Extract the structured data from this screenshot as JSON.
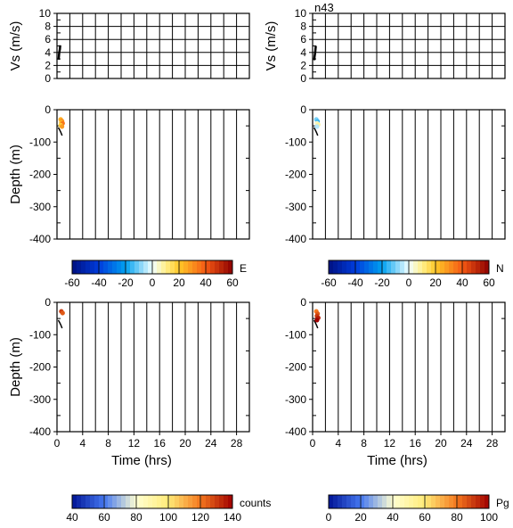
{
  "figure": {
    "station": "n43",
    "colors": {
      "frame": "#000000",
      "trace": "#000000",
      "background": "#ffffff"
    }
  },
  "chart_data": [
    {
      "type": "line",
      "panel": "vs-left",
      "ylabel": "Vs (m/s)",
      "ylim": [
        0,
        10
      ],
      "yticks": [
        0,
        2,
        4,
        6,
        8,
        10
      ],
      "xlim": [
        0,
        30
      ],
      "grid": true,
      "series": [
        {
          "x": [
            0.25,
            0.3,
            0.35,
            0.45,
            0.5
          ],
          "y": [
            2.9,
            3.4,
            4.0,
            4.5,
            5.1
          ]
        }
      ]
    },
    {
      "type": "line",
      "panel": "vs-right",
      "title": "n43",
      "ylabel": "Vs (m/s)",
      "ylim": [
        0,
        10
      ],
      "yticks": [
        0,
        2,
        4,
        6,
        8,
        10
      ],
      "xlim": [
        0,
        30
      ],
      "grid": true,
      "series": [
        {
          "x": [
            0.25,
            0.3,
            0.4,
            0.45,
            0.5
          ],
          "y": [
            2.8,
            3.3,
            4.0,
            4.5,
            5.0
          ]
        }
      ]
    },
    {
      "type": "scatter",
      "panel": "depth-E",
      "ylabel": "Depth (m)",
      "ylim": [
        -400,
        0
      ],
      "yticks": [
        0,
        -100,
        -200,
        -300,
        -400
      ],
      "xlim": [
        0,
        30
      ],
      "grid": true,
      "colorbar": {
        "label": "E",
        "min": -60,
        "max": 60,
        "ticks": [
          -60,
          -40,
          -20,
          0,
          20,
          40,
          60
        ]
      },
      "points": [
        {
          "x": 0.3,
          "y": -30,
          "v": 25
        },
        {
          "x": 0.5,
          "y": -35,
          "v": 30
        },
        {
          "x": 0.4,
          "y": -40,
          "v": 22
        },
        {
          "x": 0.6,
          "y": -42,
          "v": 35
        },
        {
          "x": 0.3,
          "y": -48,
          "v": 18
        },
        {
          "x": 0.5,
          "y": -52,
          "v": 28
        }
      ],
      "profile": {
        "x": [
          0.2,
          0.4,
          0.6,
          0.8
        ],
        "y": [
          -55,
          -62,
          -70,
          -80
        ]
      }
    },
    {
      "type": "scatter",
      "panel": "depth-N",
      "ylabel": "",
      "ylim": [
        -400,
        0
      ],
      "yticks": [
        0,
        -100,
        -200,
        -300,
        -400
      ],
      "xlim": [
        0,
        30
      ],
      "grid": true,
      "colorbar": {
        "label": "N",
        "min": -60,
        "max": 60,
        "ticks": [
          -60,
          -40,
          -20,
          0,
          20,
          40,
          60
        ]
      },
      "points": [
        {
          "x": 0.3,
          "y": -30,
          "v": -10
        },
        {
          "x": 0.5,
          "y": -36,
          "v": -15
        },
        {
          "x": 0.4,
          "y": -42,
          "v": 5
        },
        {
          "x": 0.6,
          "y": -46,
          "v": 8
        },
        {
          "x": 0.4,
          "y": -52,
          "v": -5
        }
      ],
      "profile": {
        "x": [
          0.2,
          0.4,
          0.6,
          0.8
        ],
        "y": [
          -55,
          -62,
          -70,
          -80
        ]
      }
    },
    {
      "type": "scatter",
      "panel": "depth-counts",
      "xlabel": "Time (hrs)",
      "ylabel": "Depth (m)",
      "ylim": [
        -400,
        0
      ],
      "yticks": [
        0,
        -100,
        -200,
        -300,
        -400
      ],
      "xlim": [
        0,
        30
      ],
      "xticks": [
        0,
        4,
        8,
        12,
        16,
        20,
        24,
        28
      ],
      "grid": true,
      "colorbar": {
        "label": "counts",
        "min": 40,
        "max": 140,
        "ticks": [
          40,
          60,
          80,
          100,
          120,
          140
        ]
      },
      "points": [
        {
          "x": 0.4,
          "y": -28,
          "v": 130
        },
        {
          "x": 0.6,
          "y": -33,
          "v": 125
        }
      ],
      "profile": {
        "x": [
          0.2,
          0.4,
          0.6,
          0.8
        ],
        "y": [
          -55,
          -62,
          -70,
          -80
        ]
      }
    },
    {
      "type": "scatter",
      "panel": "depth-Pg",
      "xlabel": "Time (hrs)",
      "ylabel": "",
      "ylim": [
        -400,
        0
      ],
      "yticks": [
        0,
        -100,
        -200,
        -300,
        -400
      ],
      "xlim": [
        0,
        30
      ],
      "xticks": [
        0,
        4,
        8,
        12,
        16,
        20,
        24,
        28
      ],
      "grid": true,
      "colorbar": {
        "label": "Pg",
        "min": 0,
        "max": 100,
        "ticks": [
          0,
          20,
          40,
          60,
          80,
          100
        ]
      },
      "points": [
        {
          "x": 0.3,
          "y": -28,
          "v": 80
        },
        {
          "x": 0.5,
          "y": -35,
          "v": 85
        },
        {
          "x": 0.4,
          "y": -42,
          "v": 90
        },
        {
          "x": 0.6,
          "y": -48,
          "v": 95
        },
        {
          "x": 0.4,
          "y": -55,
          "v": 100
        }
      ],
      "profile": {
        "x": [
          0.2,
          0.4,
          0.6,
          0.8
        ],
        "y": [
          -55,
          -62,
          -70,
          -80
        ]
      }
    }
  ]
}
